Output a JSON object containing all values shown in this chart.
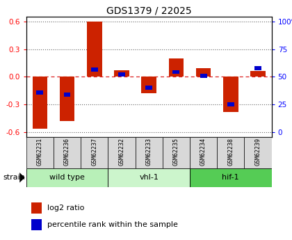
{
  "title": "GDS1379 / 22025",
  "samples": [
    "GSM62231",
    "GSM62236",
    "GSM62237",
    "GSM62232",
    "GSM62233",
    "GSM62235",
    "GSM62234",
    "GSM62238",
    "GSM62239"
  ],
  "log2_ratio": [
    -0.56,
    -0.48,
    0.6,
    0.07,
    -0.18,
    0.2,
    0.09,
    -0.38,
    0.06
  ],
  "percentile_rank": [
    37,
    35,
    56,
    52,
    41,
    54,
    51,
    27,
    57
  ],
  "groups": [
    {
      "label": "wild type",
      "start": 0,
      "end": 3,
      "color": "#b8f0b8"
    },
    {
      "label": "vhl-1",
      "start": 3,
      "end": 6,
      "color": "#ccf5cc"
    },
    {
      "label": "hif-1",
      "start": 6,
      "end": 9,
      "color": "#55cc55"
    }
  ],
  "ylim": [
    -0.65,
    0.65
  ],
  "yticks_left": [
    -0.6,
    -0.3,
    0.0,
    0.3,
    0.6
  ],
  "yticks_right": [
    0,
    25,
    50,
    75,
    100
  ],
  "bar_color_red": "#cc2200",
  "bar_color_blue": "#0000cc",
  "zero_line_color": "#dd2222",
  "grid_color": "#666666",
  "bg_color": "#ffffff",
  "legend_red": "log2 ratio",
  "legend_blue": "percentile rank within the sample",
  "bar_width": 0.55,
  "blue_bar_width": 0.25,
  "blue_bar_height": 0.045
}
